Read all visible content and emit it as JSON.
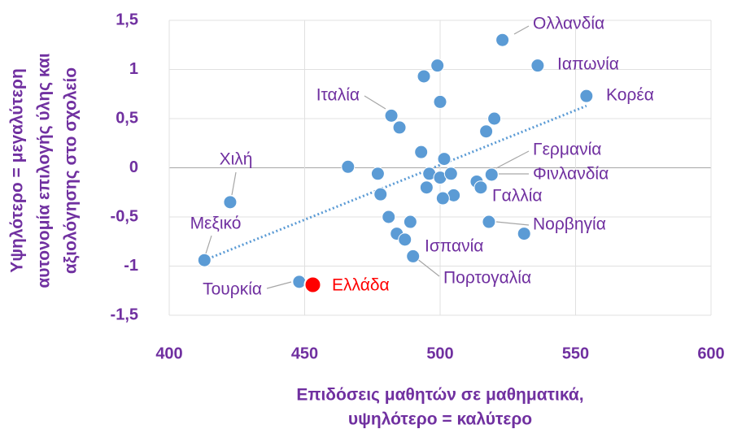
{
  "chart_data": {
    "type": "scatter",
    "x_label": [
      "Επιδόσεις μαθητών σε μαθηματικά,",
      "υψηλότερο = καλύτερο"
    ],
    "y_label": [
      "Υψηλότερο = μεγαλύτερη",
      "αυτονομία επιλογής ύλης και",
      "αξιολόγησης στο σχολείο"
    ],
    "x": [
      523,
      536,
      554,
      499,
      494,
      500,
      482,
      485,
      520,
      517,
      493,
      501.5,
      466,
      422.5,
      477,
      496,
      500,
      504,
      519,
      513.5,
      515,
      495,
      505,
      501,
      478,
      481,
      489,
      518,
      531,
      484,
      487,
      490,
      413,
      448,
      453
    ],
    "series": [
      {
        "color": "#5b9bd5",
        "values": [
          1.3,
          1.04,
          0.73,
          1.04,
          0.93,
          0.67,
          0.53,
          0.41,
          0.5,
          0.37,
          0.16,
          0.09,
          0.01,
          -0.35,
          -0.06,
          -0.06,
          -0.1,
          -0.06,
          -0.07,
          -0.14,
          -0.2,
          -0.2,
          -0.28,
          -0.31,
          -0.27,
          -0.5,
          -0.55,
          -0.55,
          -0.67,
          -0.67,
          -0.73,
          -0.9,
          -0.94,
          -1.16,
          -1.19
        ]
      }
    ],
    "highlight": {
      "index": 34,
      "color": "#ff0000"
    },
    "point_labels": [
      {
        "index": 0,
        "text": "Ολλανδία"
      },
      {
        "index": 1,
        "text": "Ιαπωνία"
      },
      {
        "index": 2,
        "text": "Κορέα"
      },
      {
        "index": 6,
        "text": "Ιταλία"
      },
      {
        "index": 13,
        "text": "Χιλή"
      },
      {
        "index": 18,
        "text": "Γερμανία"
      },
      {
        "index": 18,
        "text": "Φινλανδία"
      },
      {
        "index": 22,
        "text": "Γαλλία"
      },
      {
        "index": 27,
        "text": "Νορβηγία"
      },
      {
        "index": 30,
        "text": "Ισπανία"
      },
      {
        "index": 31,
        "text": "Πορτογαλία"
      },
      {
        "index": 32,
        "text": "Μεξικό"
      },
      {
        "index": 33,
        "text": "Τουρκία"
      },
      {
        "index": 34,
        "text": "Ελλάδα"
      }
    ],
    "trendline": {
      "color": "#5b9bd5",
      "x": [
        413,
        554
      ],
      "y": [
        -0.94,
        0.63
      ]
    },
    "xlim": [
      400,
      600
    ],
    "xticks": [
      400,
      450,
      500,
      550,
      600
    ],
    "ylim": [
      -1.5,
      1.5
    ],
    "yticks": [
      {
        "value": 1.5,
        "label": "1,5"
      },
      1,
      {
        "value": 0.5,
        "label": "0,5"
      },
      0,
      {
        "value": -0.5,
        "label": "-0,5"
      },
      -1,
      {
        "value": -1.5,
        "label": "-1,5"
      }
    ],
    "grid": true
  }
}
